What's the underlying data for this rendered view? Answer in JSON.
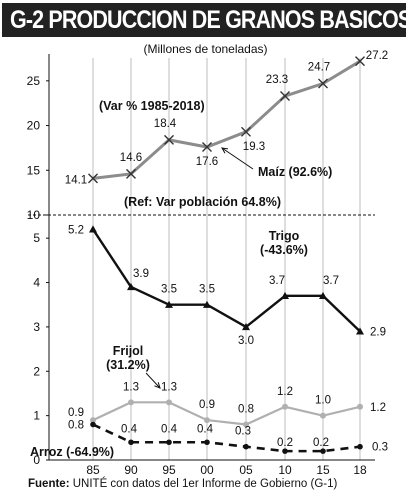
{
  "header": {
    "title": "G-2 PRODUCCION DE GRANOS BASICOS",
    "subtitle": "(Millones de toneladas)"
  },
  "footer": {
    "source_label": "Fuente:",
    "source_text": "UNITÉ con datos del 1er Informe de Gobierno (G-1)"
  },
  "colors": {
    "title_bg": "#222222",
    "maiz": "#8c8c8c",
    "trigo": "#111111",
    "frijol": "#b0b0b0",
    "arroz": "#111111"
  },
  "chart_data": [
    {
      "type": "line",
      "panel": "upper",
      "categories": [
        "85",
        "90",
        "95",
        "00",
        "05",
        "10",
        "15",
        "18"
      ],
      "ylim": [
        10,
        28
      ],
      "yticks": [
        "10",
        "15",
        "20",
        "25"
      ],
      "series": [
        {
          "name": "Maíz (92.6%)",
          "values": [
            14.1,
            14.6,
            18.4,
            17.6,
            19.3,
            23.3,
            24.7,
            27.2
          ],
          "labels": [
            "14.1",
            "14.6",
            "18.4",
            "17.6",
            "19.3",
            "23.3",
            "24.7",
            "27.2"
          ]
        }
      ],
      "annotations": [
        "(Var % 1985-2018)",
        "(Ref: Var población 64.8%)"
      ]
    },
    {
      "type": "line",
      "panel": "lower",
      "categories": [
        "85",
        "90",
        "95",
        "00",
        "05",
        "10",
        "15",
        "18"
      ],
      "ylim": [
        0,
        5.5
      ],
      "yticks": [
        "0",
        "1",
        "2",
        "3",
        "4",
        "5"
      ],
      "series": [
        {
          "name": "Trigo (-43.6%)",
          "values": [
            5.2,
            3.9,
            3.5,
            3.5,
            3.0,
            3.7,
            3.7,
            2.9
          ],
          "labels": [
            "5.2",
            "3.9",
            "3.5",
            "3.5",
            "3.0",
            "3.7",
            "3.7",
            "2.9"
          ]
        },
        {
          "name": "Frijol (31.2%)",
          "values": [
            0.9,
            1.3,
            1.3,
            0.9,
            0.8,
            1.2,
            1.0,
            1.2
          ],
          "labels": [
            "0.9",
            "1.3",
            "1.3",
            "0.9",
            "0.8",
            "1.2",
            "1.0",
            "1.2"
          ]
        },
        {
          "name": "Arroz (-64.9%)",
          "values": [
            0.8,
            0.4,
            0.4,
            0.4,
            0.3,
            0.2,
            0.2,
            0.3
          ],
          "labels": [
            "0.8",
            "0.4",
            "0.4",
            "0.4",
            "0.3",
            "0.2",
            "0.2",
            "0.3"
          ]
        }
      ]
    }
  ]
}
